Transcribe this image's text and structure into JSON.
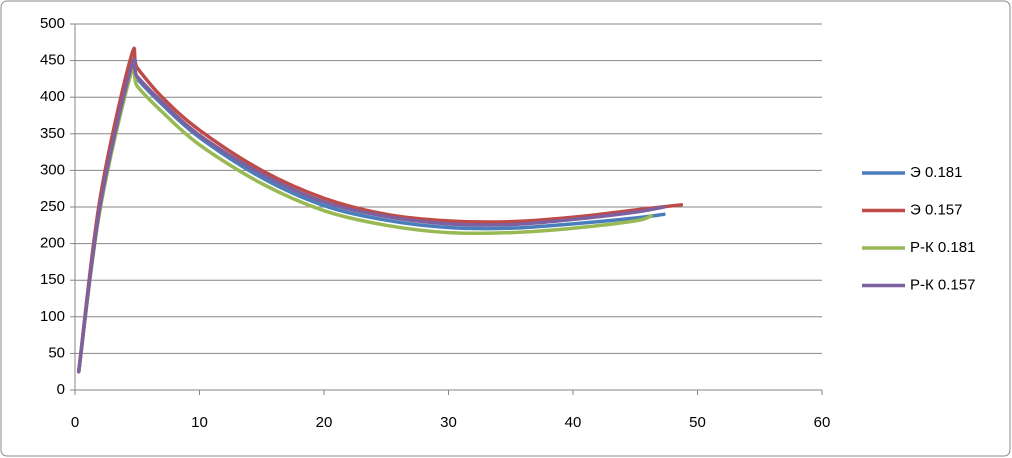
{
  "chart_data": {
    "type": "line",
    "series": [
      {
        "name": "Э 0.181",
        "color": "#4a7ebb",
        "x": [
          0.3,
          2,
          4.5,
          5,
          7,
          10,
          15,
          20,
          25,
          30,
          35,
          40,
          45,
          47.3
        ],
        "values": [
          25,
          250,
          438,
          425,
          390,
          345,
          290,
          252,
          232,
          222,
          221,
          227,
          235,
          240
        ]
      },
      {
        "name": "Э 0.157",
        "color": "#be4b48",
        "x": [
          0.3,
          2,
          4.5,
          5,
          7,
          10,
          15,
          20,
          25,
          30,
          35,
          40,
          45,
          48.7
        ],
        "values": [
          25,
          260,
          455,
          440,
          400,
          355,
          300,
          262,
          240,
          231,
          230,
          236,
          246,
          253
        ]
      },
      {
        "name": "Р-К 0.181",
        "color": "#98b954",
        "x": [
          0.3,
          2,
          4.5,
          5,
          7,
          10,
          15,
          20,
          25,
          30,
          35,
          40,
          45,
          46.3
        ],
        "values": [
          25,
          245,
          432,
          415,
          380,
          335,
          282,
          245,
          225,
          215,
          215,
          221,
          231,
          238
        ]
      },
      {
        "name": "Р-К 0.157",
        "color": "#7d60a0",
        "x": [
          0.3,
          2,
          4.5,
          5,
          7,
          10,
          15,
          20,
          25,
          30,
          35,
          40,
          45,
          47.3
        ],
        "values": [
          25,
          250,
          440,
          428,
          393,
          348,
          295,
          257,
          237,
          227,
          226,
          233,
          243,
          250
        ]
      }
    ],
    "xlim": [
      0,
      60
    ],
    "xticks": [
      0,
      10,
      20,
      30,
      40,
      50,
      60
    ],
    "ylim": [
      0,
      500
    ],
    "yticks": [
      0,
      50,
      100,
      150,
      200,
      250,
      300,
      350,
      400,
      450,
      500
    ],
    "grid": true,
    "legend": "right"
  }
}
